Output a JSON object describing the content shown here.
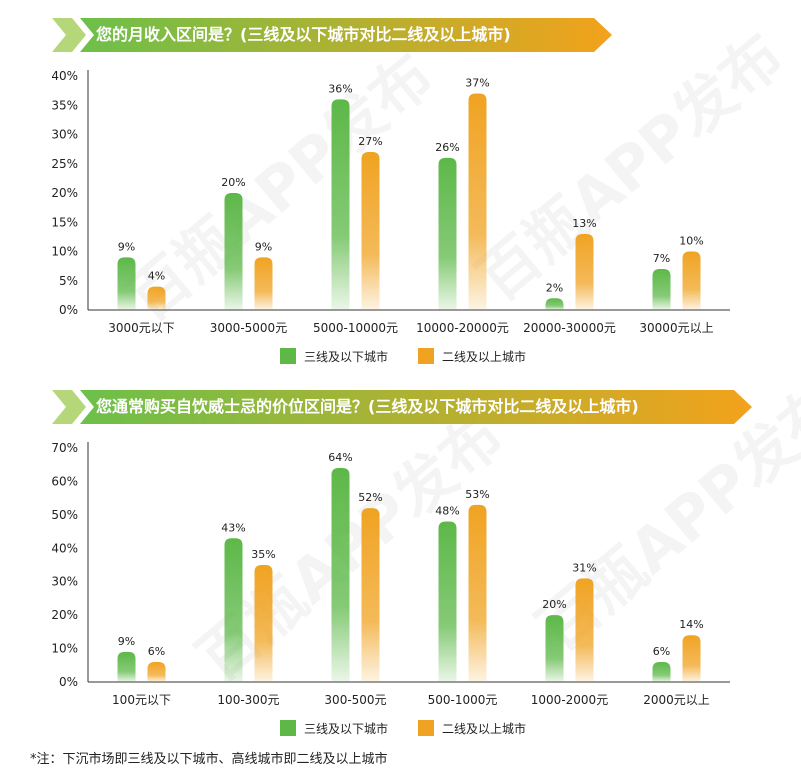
{
  "colors": {
    "green": "#5db848",
    "orange": "#f0a322",
    "banner_start": "#6cc04a",
    "banner_end": "#f3a21b",
    "chevron": "#b5d77a"
  },
  "watermark_text": "百瓶APP发布",
  "chart_data": [
    {
      "type": "bar",
      "title": "您的月收入区间是？(三线及以下城市对比二线及以上城市)",
      "categories": [
        "3000元以下",
        "3000-5000元",
        "5000-10000元",
        "10000-20000元",
        "20000-30000元",
        "30000元以上"
      ],
      "series": [
        {
          "name": "三线及以下城市",
          "values": [
            9,
            20,
            36,
            26,
            2,
            7
          ],
          "labels": [
            "9%",
            "20%",
            "36%",
            "26%",
            "2%",
            "7%"
          ]
        },
        {
          "name": "二线及以上城市",
          "values": [
            4,
            9,
            27,
            37,
            13,
            10
          ],
          "labels": [
            "4%",
            "9%",
            "27%",
            "37%",
            "13%",
            "10%"
          ]
        }
      ],
      "ylim": [
        0,
        40
      ],
      "yticks": [
        "0%",
        "5%",
        "10%",
        "15%",
        "20%",
        "25%",
        "30%",
        "35%",
        "40%"
      ],
      "legend": "bottom",
      "grid": false
    },
    {
      "type": "bar",
      "title": "您通常购买自饮威士忌的价位区间是？(三线及以下城市对比二线及以上城市)",
      "categories": [
        "100元以下",
        "100-300元",
        "300-500元",
        "500-1000元",
        "1000-2000元",
        "2000元以上"
      ],
      "series": [
        {
          "name": "三线及以下城市",
          "values": [
            9,
            43,
            64,
            48,
            20,
            6
          ],
          "labels": [
            "9%",
            "43%",
            "64%",
            "48%",
            "20%",
            "6%"
          ]
        },
        {
          "name": "二线及以上城市",
          "values": [
            6,
            35,
            52,
            53,
            31,
            14
          ],
          "labels": [
            "6%",
            "35%",
            "52%",
            "53%",
            "31%",
            "14%"
          ]
        }
      ],
      "ylim": [
        0,
        70
      ],
      "yticks": [
        "0%",
        "10%",
        "20%",
        "30%",
        "40%",
        "50%",
        "60%",
        "70%"
      ],
      "legend": "bottom",
      "grid": false
    }
  ],
  "footnote": "*注：下沉市场即三线及以下城市、高线城市即二线及以上城市"
}
